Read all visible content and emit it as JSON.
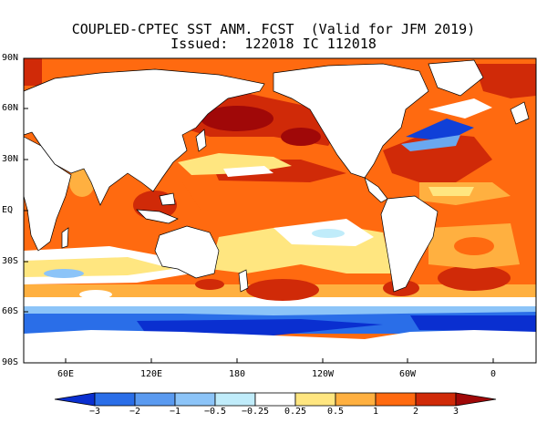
{
  "title_line1": "COUPLED-CPTEC SST ANM. FCST  (Valid for JFM 2019)",
  "title_line2": "Issued:  122018 IC 112018",
  "lat_labels": [
    "90N",
    "60N",
    "30N",
    "EQ",
    "30S",
    "60S",
    "90S"
  ],
  "lon_labels": [
    "60E",
    "120E",
    "180",
    "120W",
    "60W",
    "0"
  ],
  "colorbar": {
    "ticks": [
      "−3",
      "−2",
      "−1",
      "−0.5",
      "−0.25",
      "0.25",
      "0.5",
      "1",
      "2",
      "3"
    ],
    "colors": [
      "#0a2fd0",
      "#2a6ee8",
      "#5a9af0",
      "#8cc4f8",
      "#c0ecfa",
      "#ffffff",
      "#ffe680",
      "#ffb040",
      "#ff6a10",
      "#d02a08",
      "#a00808"
    ]
  },
  "colors": {
    "sst_warm_strong": "#c01a0a",
    "sst_warm": "#f04a10",
    "sst_warm_mild": "#ff9a30",
    "sst_weak": "#ffe680",
    "sst_cold": "#1040d8",
    "sst_cold_mild": "#6aa8f0",
    "land": "#ffffff"
  }
}
